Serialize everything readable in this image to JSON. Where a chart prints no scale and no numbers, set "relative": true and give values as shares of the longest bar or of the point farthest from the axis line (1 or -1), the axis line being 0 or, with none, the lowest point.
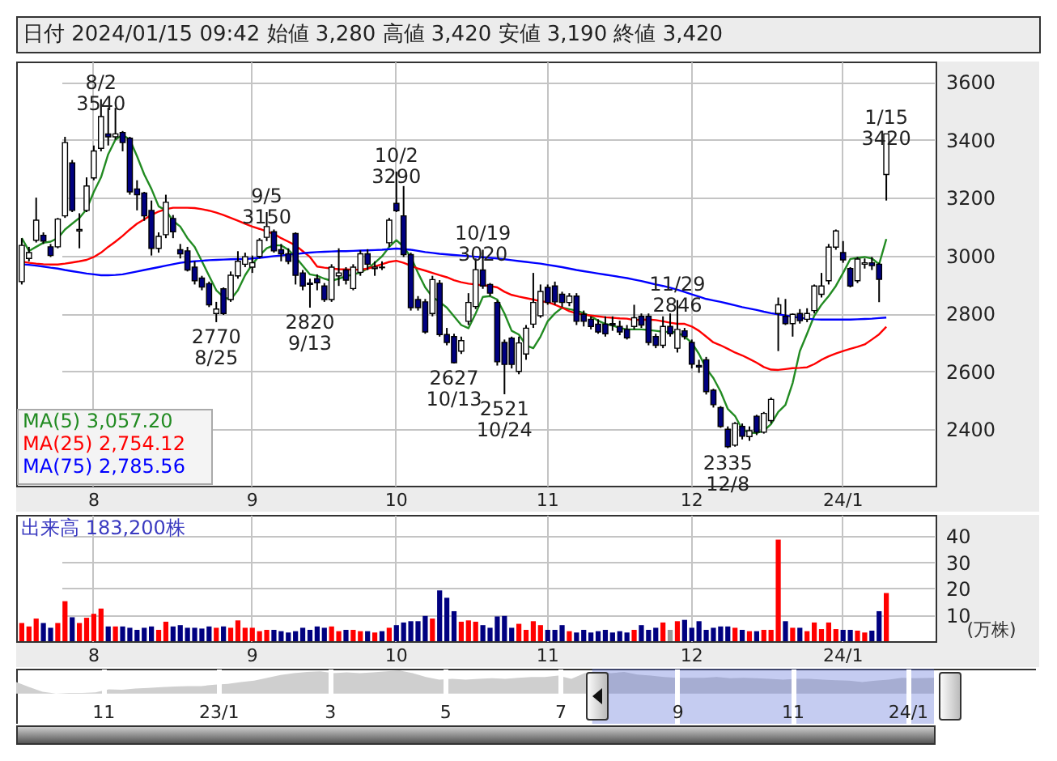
{
  "chart_data": [
    {
      "type": "candlestick",
      "title": "日付 2024/01/15 09:42 始値 3,280 高値 3,420 安値 3,190 終値 3,420",
      "categories": [
        null,
        null,
        null,
        null,
        null,
        null,
        null,
        null,
        null,
        null,
        "8",
        null,
        null,
        null,
        null,
        null,
        null,
        null,
        null,
        null,
        null,
        null,
        null,
        null,
        null,
        null,
        null,
        null,
        null,
        null,
        null,
        null,
        "9",
        null,
        null,
        null,
        null,
        null,
        null,
        null,
        null,
        null,
        null,
        null,
        null,
        null,
        null,
        null,
        null,
        null,
        null,
        null,
        "10",
        null,
        null,
        null,
        null,
        null,
        null,
        null,
        null,
        null,
        null,
        null,
        null,
        null,
        null,
        null,
        null,
        null,
        null,
        null,
        null,
        "11",
        null,
        null,
        null,
        null,
        null,
        null,
        null,
        null,
        null,
        null,
        null,
        null,
        null,
        null,
        null,
        null,
        null,
        null,
        null,
        "12",
        null,
        null,
        null,
        null,
        null,
        null,
        null,
        null,
        null,
        null,
        null,
        null,
        null,
        null,
        null,
        null,
        null,
        null,
        null,
        null,
        "24/1",
        null,
        null,
        null,
        null,
        null,
        null
      ],
      "ohlc": [
        [
          2910,
          3060,
          2900,
          3035
        ],
        [
          2990,
          3030,
          2980,
          3010
        ],
        [
          3053,
          3200,
          3045,
          3122
        ],
        [
          3070,
          3080,
          3040,
          3050
        ],
        [
          3030,
          3040,
          2995,
          3000
        ],
        [
          3030,
          3130,
          3025,
          3126
        ],
        [
          3137,
          3410,
          3130,
          3390
        ],
        [
          3320,
          3330,
          3150,
          3156
        ],
        [
          3085,
          3146,
          3025,
          3090
        ],
        [
          3156,
          3270,
          3150,
          3240
        ],
        [
          3268,
          3380,
          3260,
          3361
        ],
        [
          3370,
          3540,
          3360,
          3480
        ],
        [
          3420,
          3510,
          3380,
          3410
        ],
        [
          3410,
          3510,
          3400,
          3420
        ],
        [
          3425,
          3430,
          3360,
          3390
        ],
        [
          3405,
          3410,
          3210,
          3220
        ],
        [
          3230,
          3260,
          3156,
          3210
        ],
        [
          3216,
          3220,
          3120,
          3137
        ],
        [
          3156,
          3190,
          3000,
          3025
        ],
        [
          3025,
          3080,
          3010,
          3066
        ],
        [
          3072,
          3210,
          3060,
          3184
        ],
        [
          3128,
          3140,
          3060,
          3082
        ],
        [
          3020,
          3040,
          2990,
          3006
        ],
        [
          3016,
          3030,
          2945,
          2950
        ],
        [
          2960,
          2980,
          2900,
          2913
        ],
        [
          2922,
          2930,
          2880,
          2891
        ],
        [
          2903,
          2910,
          2822,
          2830
        ],
        [
          2800,
          2840,
          2770,
          2815
        ],
        [
          2885,
          2890,
          2795,
          2800
        ],
        [
          2848,
          2945,
          2840,
          2932
        ],
        [
          2930,
          3015,
          2920,
          2980
        ],
        [
          2970,
          3010,
          2960,
          2996
        ],
        [
          2960,
          3000,
          2940,
          2975
        ],
        [
          2997,
          3060,
          2990,
          3053
        ],
        [
          3063,
          3150,
          3050,
          3100
        ],
        [
          3082,
          3090,
          3010,
          3016
        ],
        [
          3020,
          3040,
          2980,
          3006
        ],
        [
          3006,
          3025,
          2970,
          2980
        ],
        [
          3076,
          3080,
          2900,
          2932
        ],
        [
          2940,
          2950,
          2880,
          2895
        ],
        [
          2905,
          2920,
          2820,
          2900
        ],
        [
          2920,
          2935,
          2880,
          2906
        ],
        [
          2895,
          2905,
          2840,
          2848
        ],
        [
          2848,
          2970,
          2840,
          2960
        ],
        [
          2930,
          3025,
          2895,
          2940
        ],
        [
          2950,
          2960,
          2900,
          2915
        ],
        [
          2886,
          2970,
          2880,
          2960
        ],
        [
          2942,
          3018,
          2930,
          3006
        ],
        [
          3006,
          3022,
          2950,
          2970
        ],
        [
          2955,
          2980,
          2930,
          2960
        ],
        [
          2960,
          2980,
          2950,
          2958
        ],
        [
          3044,
          3130,
          3030,
          3122
        ],
        [
          3180,
          3290,
          3150,
          3155
        ],
        [
          3137,
          3240,
          2995,
          3003
        ],
        [
          3003,
          3010,
          2810,
          2820
        ],
        [
          2848,
          2860,
          2810,
          2820
        ],
        [
          2840,
          2850,
          2730,
          2736
        ],
        [
          2800,
          2930,
          2790,
          2917
        ],
        [
          2904,
          2915,
          2720,
          2727
        ],
        [
          2727,
          2750,
          2690,
          2700
        ],
        [
          2720,
          2730,
          2627,
          2630
        ],
        [
          2670,
          2720,
          2660,
          2706
        ],
        [
          2773,
          2870,
          2760,
          2838
        ],
        [
          2824,
          2990,
          2815,
          2951
        ],
        [
          2950,
          3020,
          2885,
          2895
        ],
        [
          2900,
          2905,
          2860,
          2870
        ],
        [
          2838,
          2845,
          2620,
          2633
        ],
        [
          2700,
          2710,
          2521,
          2624
        ],
        [
          2715,
          2720,
          2610,
          2624
        ],
        [
          2600,
          2720,
          2590,
          2698
        ],
        [
          2660,
          2760,
          2640,
          2749
        ],
        [
          2763,
          2940,
          2750,
          2838
        ],
        [
          2792,
          2900,
          2785,
          2876
        ],
        [
          2890,
          2900,
          2830,
          2838
        ],
        [
          2895,
          2910,
          2830,
          2840
        ],
        [
          2866,
          2875,
          2822,
          2838
        ],
        [
          2838,
          2870,
          2825,
          2860
        ],
        [
          2860,
          2870,
          2760,
          2773
        ],
        [
          2797,
          2810,
          2755,
          2773
        ],
        [
          2780,
          2790,
          2745,
          2755
        ],
        [
          2763,
          2780,
          2730,
          2736
        ],
        [
          2763,
          2790,
          2720,
          2730
        ],
        [
          2765,
          2790,
          2740,
          2760
        ],
        [
          2755,
          2775,
          2725,
          2736
        ],
        [
          2745,
          2760,
          2710,
          2716
        ],
        [
          2755,
          2830,
          2745,
          2785
        ],
        [
          2790,
          2800,
          2750,
          2760
        ],
        [
          2790,
          2800,
          2690,
          2700
        ],
        [
          2720,
          2730,
          2680,
          2690
        ],
        [
          2690,
          2790,
          2680,
          2755
        ],
        [
          2755,
          2800,
          2720,
          2730
        ],
        [
          2680,
          2846,
          2665,
          2745
        ],
        [
          2740,
          2750,
          2710,
          2720
        ],
        [
          2700,
          2710,
          2610,
          2625
        ],
        [
          2620,
          2640,
          2595,
          2615
        ],
        [
          2640,
          2650,
          2520,
          2530
        ],
        [
          2535,
          2540,
          2475,
          2485
        ],
        [
          2475,
          2480,
          2405,
          2410
        ],
        [
          2400,
          2410,
          2335,
          2340
        ],
        [
          2345,
          2425,
          2340,
          2420
        ],
        [
          2410,
          2420,
          2365,
          2376
        ],
        [
          2375,
          2410,
          2360,
          2395
        ],
        [
          2445,
          2450,
          2380,
          2390
        ],
        [
          2390,
          2460,
          2385,
          2455
        ],
        [
          2430,
          2510,
          2420,
          2503
        ],
        [
          2800,
          2855,
          2670,
          2830
        ],
        [
          2790,
          2850,
          2760,
          2765
        ],
        [
          2765,
          2800,
          2720,
          2797
        ],
        [
          2800,
          2815,
          2765,
          2775
        ],
        [
          2780,
          2818,
          2770,
          2800
        ],
        [
          2810,
          2900,
          2800,
          2895
        ],
        [
          2866,
          2940,
          2855,
          2895
        ],
        [
          2913,
          3040,
          2900,
          3029
        ],
        [
          3029,
          3090,
          3020,
          3085
        ],
        [
          3010,
          3050,
          2975,
          2985
        ],
        [
          2955,
          2960,
          2890,
          2895
        ],
        [
          2913,
          2995,
          2905,
          2988
        ],
        [
          2970,
          2990,
          2955,
          2975
        ],
        [
          2975,
          2995,
          2950,
          2965
        ],
        [
          2970,
          2975,
          2839,
          2918
        ],
        [
          3280,
          3420,
          3190,
          3420
        ]
      ],
      "colors": [
        "#ffffff",
        "#ffffff",
        "#ffffff",
        "#000080",
        "#000080",
        "#ffffff",
        "#ffffff",
        "#000080",
        "#ffffff",
        "#ffffff",
        "#ffffff",
        "#ffffff",
        "#000080",
        "#ffffff",
        "#000080",
        "#000080",
        "#000080",
        "#000080",
        "#000080",
        "#ffffff",
        "#ffffff",
        "#000080",
        "#000080",
        "#000080",
        "#000080",
        "#000080",
        "#000080",
        "#ffffff",
        "#000080",
        "#ffffff",
        "#ffffff",
        "#ffffff",
        "#ffffff",
        "#ffffff",
        "#ffffff",
        "#000080",
        "#000080",
        "#000080",
        "#000080",
        "#000080",
        "#000080",
        "#000080",
        "#000080",
        "#ffffff",
        "#ffffff",
        "#000080",
        "#ffffff",
        "#ffffff",
        "#000080",
        "#ffffff",
        "#000080",
        "#ffffff",
        "#000080",
        "#000080",
        "#000080",
        "#000080",
        "#000080",
        "#ffffff",
        "#000080",
        "#000080",
        "#000080",
        "#ffffff",
        "#ffffff",
        "#ffffff",
        "#000080",
        "#000080",
        "#000080",
        "#000080",
        "#000080",
        "#ffffff",
        "#ffffff",
        "#ffffff",
        "#ffffff",
        "#000080",
        "#000080",
        "#000080",
        "#ffffff",
        "#000080",
        "#000080",
        "#000080",
        "#000080",
        "#000080",
        "#000080",
        "#000080",
        "#000080",
        "#ffffff",
        "#000080",
        "#000080",
        "#000080",
        "#ffffff",
        "#000080",
        "#ffffff",
        "#000080",
        "#000080",
        "#000080",
        "#000080",
        "#000080",
        "#000080",
        "#000080",
        "#ffffff",
        "#000080",
        "#ffffff",
        "#000080",
        "#ffffff",
        "#ffffff",
        "#ffffff",
        "#000080",
        "#ffffff",
        "#000080",
        "#ffffff",
        "#ffffff",
        "#ffffff",
        "#ffffff",
        "#ffffff",
        "#000080",
        "#000080",
        "#ffffff",
        "#ffffff",
        "#000080",
        "#000080",
        "#ffffff"
      ],
      "series": [
        {
          "name": "MA(5)  3,057.20",
          "type": "line",
          "color": "#228b22",
          "values": [
            3060,
            3016,
            3030,
            3044,
            3048,
            3060,
            3090,
            3110,
            3130,
            3160,
            3220,
            3270,
            3350,
            3400,
            3417,
            3400,
            3343,
            3280,
            3230,
            3170,
            3156,
            3120,
            3100,
            3060,
            3030,
            2980,
            2930,
            2880,
            2857,
            2848,
            2880,
            2932,
            2970,
            3000,
            3025,
            3035,
            3035,
            3020,
            2995,
            2965,
            2935,
            2930,
            2920,
            2913,
            2920,
            2928,
            2935,
            2941,
            2955,
            2975,
            2997,
            3030,
            3053,
            3030,
            2995,
            2940,
            2890,
            2857,
            2840,
            2820,
            2790,
            2760,
            2749,
            2800,
            2857,
            2860,
            2848,
            2800,
            2740,
            2727,
            2690,
            2680,
            2720,
            2773,
            2800,
            2820,
            2815,
            2810,
            2801,
            2790,
            2775,
            2764,
            2758,
            2750,
            2745,
            2745,
            2745,
            2743,
            2740,
            2737,
            2736,
            2735,
            2720,
            2699,
            2660,
            2610,
            2577,
            2530,
            2470,
            2446,
            2400,
            2388,
            2387,
            2395,
            2418,
            2460,
            2484,
            2560,
            2670,
            2730,
            2792,
            2830,
            2860,
            2895,
            2940,
            2988,
            2992,
            2995,
            2990,
            2970,
            3057
          ]
        },
        {
          "name": "MA(25)  2,754.12",
          "type": "line",
          "color": "#ff0000",
          "values": [
            2979,
            2975,
            2972,
            2970,
            2969,
            2969,
            2972,
            2976,
            2980,
            2985,
            2995,
            3010,
            3030,
            3048,
            3068,
            3090,
            3110,
            3125,
            3140,
            3152,
            3160,
            3165,
            3165,
            3165,
            3164,
            3160,
            3155,
            3148,
            3140,
            3130,
            3120,
            3110,
            3100,
            3092,
            3083,
            3075,
            3060,
            3048,
            3035,
            3015,
            2995,
            2962,
            2958,
            2955,
            2953,
            2952,
            2951,
            2951,
            2955,
            2962,
            2970,
            2978,
            2982,
            2975,
            2965,
            2955,
            2948,
            2940,
            2932,
            2925,
            2915,
            2908,
            2903,
            2900,
            2897,
            2895,
            2890,
            2875,
            2864,
            2858,
            2853,
            2848,
            2842,
            2839,
            2830,
            2820,
            2808,
            2800,
            2796,
            2793,
            2790,
            2787,
            2785,
            2783,
            2782,
            2777,
            2778,
            2779,
            2777,
            2773,
            2768,
            2764,
            2764,
            2755,
            2740,
            2720,
            2700,
            2690,
            2678,
            2665,
            2655,
            2643,
            2630,
            2615,
            2606,
            2605,
            2608,
            2611,
            2612,
            2614,
            2625,
            2640,
            2652,
            2662,
            2670,
            2678,
            2685,
            2693,
            2710,
            2728,
            2754
          ]
        },
        {
          "name": "MA(75)  2,785.56",
          "type": "line",
          "color": "#0000ff",
          "values": [
            2970,
            2968,
            2965,
            2962,
            2958,
            2955,
            2950,
            2946,
            2942,
            2938,
            2935,
            2932,
            2932,
            2933,
            2935,
            2940,
            2945,
            2950,
            2955,
            2960,
            2965,
            2970,
            2975,
            2978,
            2980,
            2982,
            2984,
            2985,
            2986,
            2987,
            2988,
            2988,
            2990,
            2992,
            2995,
            2998,
            3000,
            3003,
            3005,
            3008,
            3010,
            3012,
            3013,
            3014,
            3015,
            3015,
            3016,
            3017,
            3018,
            3019,
            3020,
            3022,
            3024,
            3022,
            3020,
            3016,
            3012,
            3009,
            3006,
            3004,
            3002,
            3000,
            2998,
            2996,
            2994,
            2992,
            2990,
            2987,
            2984,
            2981,
            2978,
            2975,
            2972,
            2968,
            2964,
            2960,
            2955,
            2950,
            2946,
            2942,
            2938,
            2934,
            2930,
            2926,
            2922,
            2917,
            2912,
            2906,
            2900,
            2895,
            2889,
            2882,
            2874,
            2866,
            2858,
            2850,
            2845,
            2840,
            2834,
            2828,
            2822,
            2817,
            2812,
            2806,
            2801,
            2797,
            2793,
            2789,
            2785,
            2782,
            2780,
            2779,
            2779,
            2779,
            2779,
            2779,
            2780,
            2781,
            2782,
            2784,
            2786
          ]
        }
      ],
      "ylim": [
        2205,
        3670
      ],
      "yticks": [
        2400,
        2600,
        2800,
        3000,
        3200,
        3400,
        3600
      ],
      "grid": true,
      "legend": "bottom left",
      "annotations": [
        {
          "text": "8/2\n3540",
          "y": 3540
        },
        {
          "text": "2770\n8/25",
          "y": 2770
        },
        {
          "text": "9/5\n3150",
          "y": 3150
        },
        {
          "text": "2820\n9/13",
          "y": 2820
        },
        {
          "text": "10/2\n3290",
          "y": 3290
        },
        {
          "text": "2627\n10/13",
          "y": 2627
        },
        {
          "text": "10/19\n3020",
          "y": 3020
        },
        {
          "text": "2521\n10/24",
          "y": 2521
        },
        {
          "text": "11/29\n2846",
          "y": 2846
        },
        {
          "text": "2335\n12/8",
          "y": 2335
        },
        {
          "text": "1/15\n3420",
          "y": 3420
        }
      ]
    },
    {
      "type": "bar",
      "title": "出来高 183,200株",
      "ylabel": "(万株)",
      "categories": [
        null,
        null,
        null,
        null,
        null,
        null,
        null,
        null,
        null,
        null,
        "8",
        null,
        null,
        null,
        null,
        null,
        null,
        null,
        null,
        null,
        null,
        null,
        null,
        null,
        null,
        null,
        null,
        null,
        null,
        null,
        null,
        null,
        "9",
        null,
        null,
        null,
        null,
        null,
        null,
        null,
        null,
        null,
        null,
        null,
        null,
        null,
        null,
        null,
        null,
        null,
        null,
        null,
        "10",
        null,
        null,
        null,
        null,
        null,
        null,
        null,
        null,
        null,
        null,
        null,
        null,
        null,
        null,
        null,
        null,
        null,
        null,
        null,
        null,
        "11",
        null,
        null,
        null,
        null,
        null,
        null,
        null,
        null,
        null,
        null,
        null,
        null,
        null,
        null,
        null,
        null,
        null,
        null,
        null,
        "12",
        null,
        null,
        null,
        null,
        null,
        null,
        null,
        null,
        null,
        null,
        null,
        null,
        null,
        null,
        null,
        null,
        null,
        null,
        null,
        null,
        "24/1",
        null,
        null,
        null,
        null,
        null,
        null
      ],
      "values": [
        6.9,
        5.6,
        8.6,
        6.9,
        5.1,
        6.9,
        15.2,
        9.1,
        6.9,
        8.9,
        10.4,
        12.4,
        5.6,
        5.6,
        5.6,
        5.1,
        4.3,
        5.1,
        5.6,
        4.3,
        7.4,
        5.6,
        6.1,
        5.1,
        5.1,
        4.8,
        5.6,
        5.1,
        5.6,
        5.1,
        7.9,
        5.1,
        5.1,
        3.8,
        4.3,
        4.3,
        3.8,
        3.3,
        3.8,
        5.1,
        4.3,
        5.6,
        5.1,
        5.6,
        3.8,
        4.3,
        4.3,
        3.8,
        3.8,
        3.3,
        3.8,
        5.1,
        6.1,
        7.1,
        7.6,
        7.6,
        9.6,
        8.6,
        19.3,
        16.5,
        11.4,
        7.4,
        7.9,
        7.4,
        6.1,
        5.1,
        9.4,
        9.6,
        5.1,
        6.6,
        4.3,
        7.6,
        6.1,
        4.3,
        4.3,
        6.1,
        3.8,
        3.3,
        4.3,
        3.3,
        3.8,
        4.3,
        3.3,
        3.8,
        3.3,
        4.3,
        6.1,
        4.3,
        5.1,
        7.1,
        4.3,
        7.6,
        8.1,
        5.1,
        7.6,
        4.3,
        5.1,
        5.6,
        5.6,
        5.1,
        4.3,
        3.8,
        3.8,
        4.3,
        4.3,
        38.6,
        7.6,
        5.1,
        5.1,
        3.8,
        7.1,
        4.6,
        7.1,
        4.6,
        4.3,
        4.3,
        4.0,
        3.3,
        4.0,
        11.4,
        18.3
      ],
      "colors": [
        "#ff0000",
        "#ff0000",
        "#ff0000",
        "#000080",
        "#000080",
        "#ff0000",
        "#ff0000",
        "#000080",
        "#ff0000",
        "#ff0000",
        "#ff0000",
        "#ff0000",
        "#000080",
        "#ff0000",
        "#000080",
        "#000080",
        "#000080",
        "#000080",
        "#000080",
        "#ff0000",
        "#ff0000",
        "#000080",
        "#000080",
        "#000080",
        "#000080",
        "#000080",
        "#000080",
        "#ff0000",
        "#000080",
        "#ff0000",
        "#ff0000",
        "#ff0000",
        "#ff0000",
        "#ff0000",
        "#ff0000",
        "#000080",
        "#000080",
        "#000080",
        "#000080",
        "#000080",
        "#000080",
        "#000080",
        "#000080",
        "#ff0000",
        "#ff0000",
        "#000080",
        "#ff0000",
        "#ff0000",
        "#000080",
        "#ff0000",
        "#000080",
        "#ff0000",
        "#000080",
        "#000080",
        "#000080",
        "#000080",
        "#000080",
        "#ff0000",
        "#000080",
        "#000080",
        "#000080",
        "#ff0000",
        "#ff0000",
        "#ff0000",
        "#000080",
        "#000080",
        "#000080",
        "#000080",
        "#000080",
        "#ff0000",
        "#ff0000",
        "#ff0000",
        "#ff0000",
        "#000080",
        "#000080",
        "#000080",
        "#ff0000",
        "#000080",
        "#000080",
        "#000080",
        "#000080",
        "#000080",
        "#000080",
        "#000080",
        "#000080",
        "#ff0000",
        "#000080",
        "#000080",
        "#000080",
        "#ff0000",
        "#999999",
        "#ff0000",
        "#000080",
        "#000080",
        "#000080",
        "#000080",
        "#000080",
        "#000080",
        "#000080",
        "#ff0000",
        "#000080",
        "#ff0000",
        "#000080",
        "#ff0000",
        "#ff0000",
        "#ff0000",
        "#000080",
        "#ff0000",
        "#000080",
        "#ff0000",
        "#ff0000",
        "#ff0000",
        "#ff0000",
        "#ff0000",
        "#000080",
        "#000080",
        "#ff0000",
        "#ff0000",
        "#000080",
        "#000080",
        "#ff0000"
      ],
      "ylim": [
        0,
        48
      ],
      "yticks": [
        10,
        20,
        30,
        40
      ],
      "grid": true
    },
    {
      "type": "area",
      "relative": true,
      "grid": "x",
      "x": [
        "2022-09-16",
        "2022-09-23",
        "2022-09-30",
        "2022-10-07",
        "2022-10-14",
        "2022-10-21",
        "2022-10-28",
        "2022-11-04",
        "2022-11-11",
        "2022-11-18",
        "2022-11-25",
        "2022-12-02",
        "2022-12-09",
        "2022-12-16",
        "2022-12-23",
        "2022-12-30",
        "2023-01-06",
        "2023-01-13",
        "2023-01-20",
        "2023-01-27",
        "2023-02-03",
        "2023-02-10",
        "2023-02-17",
        "2023-02-24",
        "2023-03-03",
        "2023-03-10",
        "2023-03-17",
        "2023-03-24",
        "2023-03-31",
        "2023-04-07",
        "2023-04-14",
        "2023-04-21",
        "2023-04-28",
        "2023-05-05",
        "2023-05-12",
        "2023-05-19",
        "2023-05-26",
        "2023-06-02",
        "2023-06-09",
        "2023-06-16",
        "2023-06-23",
        "2023-06-30",
        "2023-07-07",
        "2023-07-14",
        "2023-07-21",
        "2023-07-28",
        "2023-08-04",
        "2023-08-11",
        "2023-08-18",
        "2023-08-25",
        "2023-09-01",
        "2023-09-08",
        "2023-09-15",
        "2023-09-22",
        "2023-09-29",
        "2023-10-06",
        "2023-10-13",
        "2023-10-20",
        "2023-10-27",
        "2023-11-03",
        "2023-11-10",
        "2023-11-17",
        "2023-11-24",
        "2023-12-01",
        "2023-12-08",
        "2023-12-15",
        "2023-12-22",
        "2023-12-29",
        "2024-01-05",
        "2024-01-15"
      ],
      "xlim": [
        "2022-09-16",
        "2024-03-09"
      ],
      "xticks": [
        {
          "value": "2022-11-01",
          "label": "11"
        },
        {
          "value": "2023-01-01",
          "label": "23/1"
        },
        {
          "value": "2023-03-01",
          "label": "3"
        },
        {
          "value": "2023-05-01",
          "label": "5"
        },
        {
          "value": "2023-07-01",
          "label": "7"
        },
        {
          "value": "2023-09-01",
          "label": "9"
        },
        {
          "value": "2023-11-01",
          "label": "11"
        },
        {
          "value": "2024-01-01",
          "label": "24/1"
        }
      ],
      "bands": [
        {
          "axis": "x",
          "from": "2023-07-18",
          "to": "2024-01-15",
          "color": "#5a6cd8"
        }
      ],
      "series": [
        {
          "color": "#cfcfcf",
          "values": [
            0.5,
            0.28,
            0.08,
            0,
            0.03,
            0.03,
            0.06,
            0.19,
            0.17,
            0.22,
            0.25,
            0.28,
            0.31,
            0.33,
            0.33,
            0.39,
            0.42,
            0.5,
            0.56,
            0.69,
            0.81,
            0.89,
            0.94,
            0.97,
            0.89,
            0.92,
            0.89,
            0.92,
            0.97,
            1,
            0.89,
            0.72,
            0.61,
            0.64,
            0.61,
            0.64,
            0.67,
            0.64,
            0.69,
            0.72,
            0.72,
            0.78,
            0.64,
            0.89,
            0.94,
            0.89,
            0.94,
            0.83,
            0.78,
            0.72,
            0.69,
            0.69,
            0.69,
            0.72,
            0.67,
            0.69,
            0.67,
            0.64,
            0.61,
            0.64,
            0.64,
            0.61,
            0.58,
            0.56,
            0.5,
            0.56,
            0.61,
            0.69,
            0.67,
            0.69
          ]
        }
      ]
    }
  ]
}
